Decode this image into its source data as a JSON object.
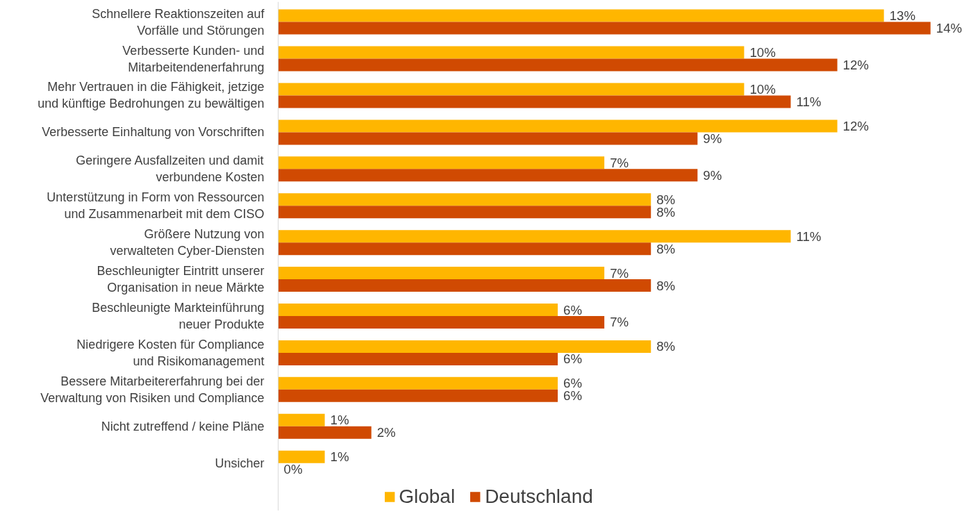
{
  "chart_data": {
    "type": "bar",
    "orientation": "horizontal",
    "legend": "bottom",
    "grid": false,
    "data_labels": true,
    "categories": [
      "Schnellere Reaktionszeiten auf\nVorfälle und Störungen",
      "Verbesserte Kunden- und\nMitarbeitendenerfahrung",
      "Mehr Vertrauen in die Fähigkeit, jetzige\nund künftige Bedrohungen zu bewältigen",
      "Verbesserte Einhaltung von Vorschriften",
      "Geringere Ausfallzeiten und damit\nverbundene Kosten",
      "Unterstützung in Form von Ressourcen\nund Zusammenarbeit mit dem CISO",
      "Größere Nutzung von\nverwalteten Cyber-Diensten",
      "Beschleunigter Eintritt unserer\nOrganisation in neue Märkte",
      "Beschleunigte Markteinführung\nneuer Produkte",
      "Niedrigere Kosten für Compliance\nund Risikomanagement",
      "Bessere Mitarbeitererfahrung bei der\nVerwaltung von Risiken und Compliance",
      "Nicht zutreffend / keine Pläne",
      "Unsicher"
    ],
    "series": [
      {
        "name": "Global",
        "color": "#ffb600",
        "values": [
          13,
          10,
          10,
          12,
          7,
          8,
          11,
          7,
          6,
          8,
          6,
          1,
          1
        ],
        "value_labels": [
          "13%",
          "10%",
          "10%",
          "12%",
          "7%",
          "8%",
          "11%",
          "7%",
          "6%",
          "8%",
          "6%",
          "1%",
          "1%"
        ]
      },
      {
        "name": "Deutschland",
        "color": "#d04a02",
        "values": [
          14,
          12,
          11,
          9,
          9,
          8,
          8,
          8,
          7,
          6,
          6,
          2,
          0
        ],
        "value_labels": [
          "14%",
          "12%",
          "11%",
          "9%",
          "9%",
          "8%",
          "8%",
          "8%",
          "7%",
          "6%",
          "6%",
          "2%",
          "0%"
        ]
      }
    ]
  }
}
